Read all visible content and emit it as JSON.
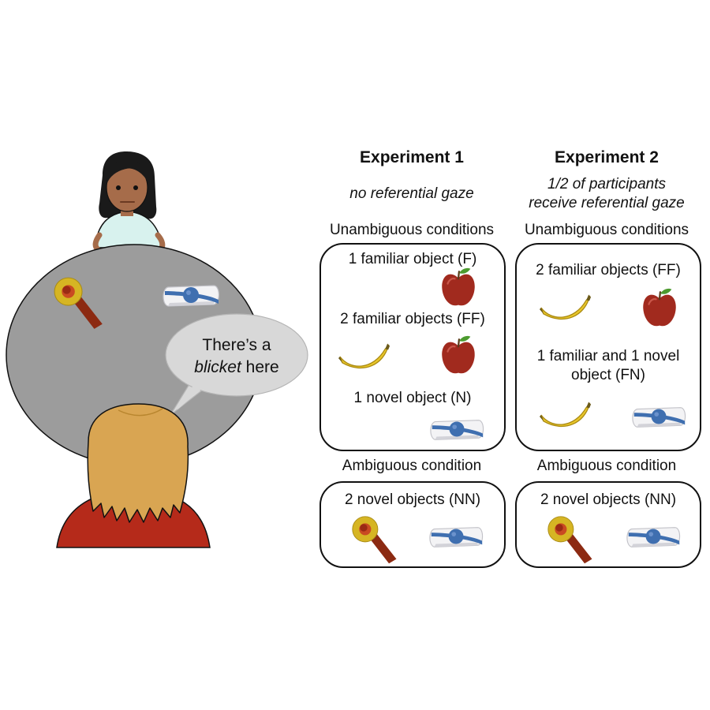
{
  "speech_bubble": {
    "line1": "There’s a",
    "line2_italic": "blicket",
    "line2_rest": " here"
  },
  "experiment1": {
    "title": "Experiment 1",
    "subtitle": "no referential gaze",
    "unambiguous_heading": "Unambiguous conditions",
    "conditions": [
      {
        "label": "1 familiar object (F)"
      },
      {
        "label": "2 familiar objects (FF)"
      },
      {
        "label": "1 novel object (N)"
      }
    ],
    "ambiguous_heading": "Ambiguous condition",
    "ambiguous_label": "2 novel objects (NN)"
  },
  "experiment2": {
    "title": "Experiment 2",
    "subtitle_line1": "1/2 of participants",
    "subtitle_line2": "receive referential gaze",
    "unambiguous_heading": "Unambiguous conditions",
    "conditions": [
      {
        "label": "2 familiar objects (FF)"
      },
      {
        "label_line1": "1 familiar and 1 novel",
        "label_line2": "object (FN)"
      }
    ],
    "ambiguous_heading": "Ambiguous condition",
    "ambiguous_label": "2 novel objects (NN)"
  },
  "icons": [
    "apple-icon",
    "banana-icon",
    "novel-object-blue-icon",
    "novel-object-yellow-icon"
  ],
  "colors": {
    "table": "#9c9c9c",
    "speaker_skin": "#a66c4a",
    "speaker_hair": "#1a1a1a",
    "speaker_shirt": "#d8f2ee",
    "child_hair": "#d9a552",
    "child_shirt": "#b52a1a",
    "apple": "#a12a1e",
    "banana": "#e8c62a",
    "novel_blue": "#3f6fb0",
    "novel_yellow": "#d6b523"
  }
}
